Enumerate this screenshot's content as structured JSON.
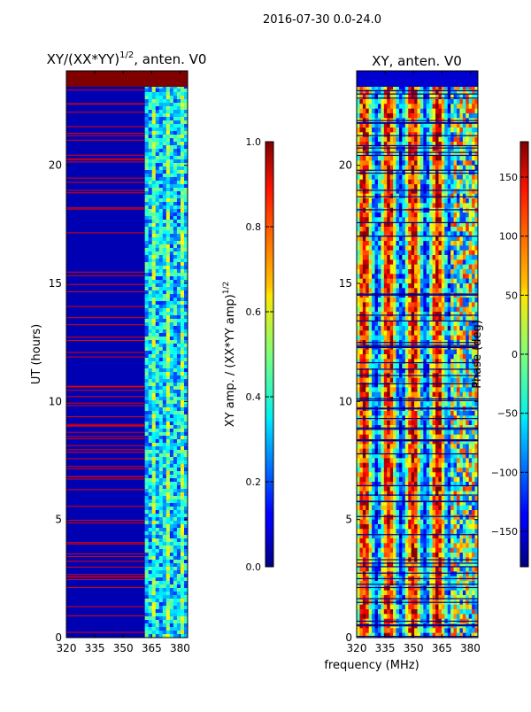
{
  "figure": {
    "suptitle": "2016-07-30 0.0-24.0",
    "xlabel": "frequency (MHz)"
  },
  "chart_data": [
    {
      "type": "heatmap",
      "title_prefix": "XY/(XX*YY)",
      "title_exp": "1/2",
      "title_suffix": ", anten. V0",
      "ylabel": "UT (hours)",
      "xlim": [
        320,
        384
      ],
      "ylim": [
        0,
        24
      ],
      "xticks": [
        320,
        335,
        350,
        365,
        380
      ],
      "yticks": [
        0,
        5,
        10,
        15,
        20
      ],
      "colorbar": {
        "label": "XY amp. / (XX*YY amp)^1/2",
        "label_prefix": "XY amp. / (XX*YY amp)",
        "label_exp": "1/2",
        "range": [
          0.0,
          1.0
        ],
        "ticks": [
          "0.0",
          "0.2",
          "0.4",
          "0.6",
          "0.8",
          "1.0"
        ],
        "colormap": "jet"
      },
      "description_values": {
        "low_band_value": 0.05,
        "high_band_value": 0.3,
        "top_saturated_value": 1.0
      }
    },
    {
      "type": "heatmap",
      "title": "XY, anten. V0",
      "ylabel": "",
      "xlim": [
        320,
        384
      ],
      "ylim": [
        0,
        24
      ],
      "xticks": [
        320,
        335,
        350,
        365,
        380
      ],
      "yticks": [
        0,
        5,
        10,
        15,
        20
      ],
      "colorbar": {
        "label": "Phase (deg)",
        "range": [
          -180,
          180
        ],
        "ticks": [
          "150",
          "100",
          "50",
          "0",
          "−50",
          "−100",
          "−150"
        ],
        "tick_values": [
          150,
          100,
          50,
          0,
          -50,
          -100,
          -150
        ],
        "colormap": "jet"
      }
    }
  ],
  "colors": {
    "jet_start": "#00007f",
    "jet_end": "#7f0000"
  }
}
